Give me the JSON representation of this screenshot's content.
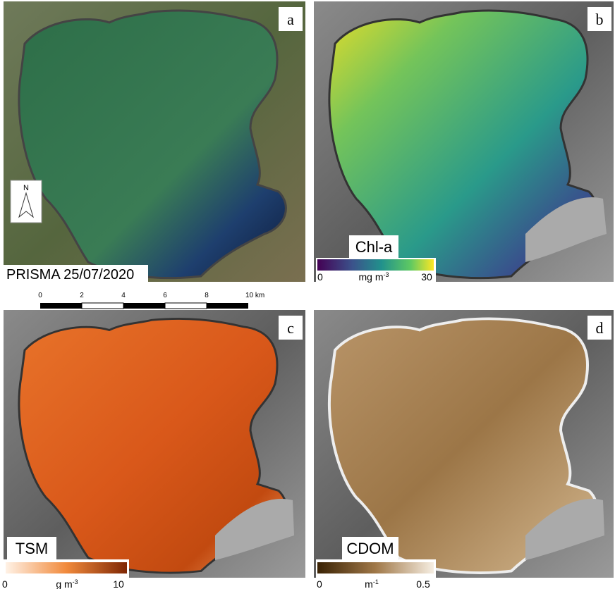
{
  "panels": [
    {
      "letter": "a",
      "caption": "PRISMA 25/07/2020",
      "north": "N"
    },
    {
      "letter": "b",
      "title": "Chl-a",
      "colorbar": {
        "min": "0",
        "unit": "mg m",
        "unit_exp": "-3",
        "max": "30"
      }
    },
    {
      "letter": "c",
      "title": "TSM",
      "colorbar": {
        "min": "0",
        "unit": "g m",
        "unit_exp": "-3",
        "max": "10"
      }
    },
    {
      "letter": "d",
      "title": "CDOM",
      "colorbar": {
        "min": "0",
        "unit": "m",
        "unit_exp": "-1",
        "max": "0.5"
      }
    }
  ],
  "scale_bar": {
    "labels": [
      "0",
      "2",
      "4",
      "6",
      "8",
      "10 km"
    ]
  }
}
